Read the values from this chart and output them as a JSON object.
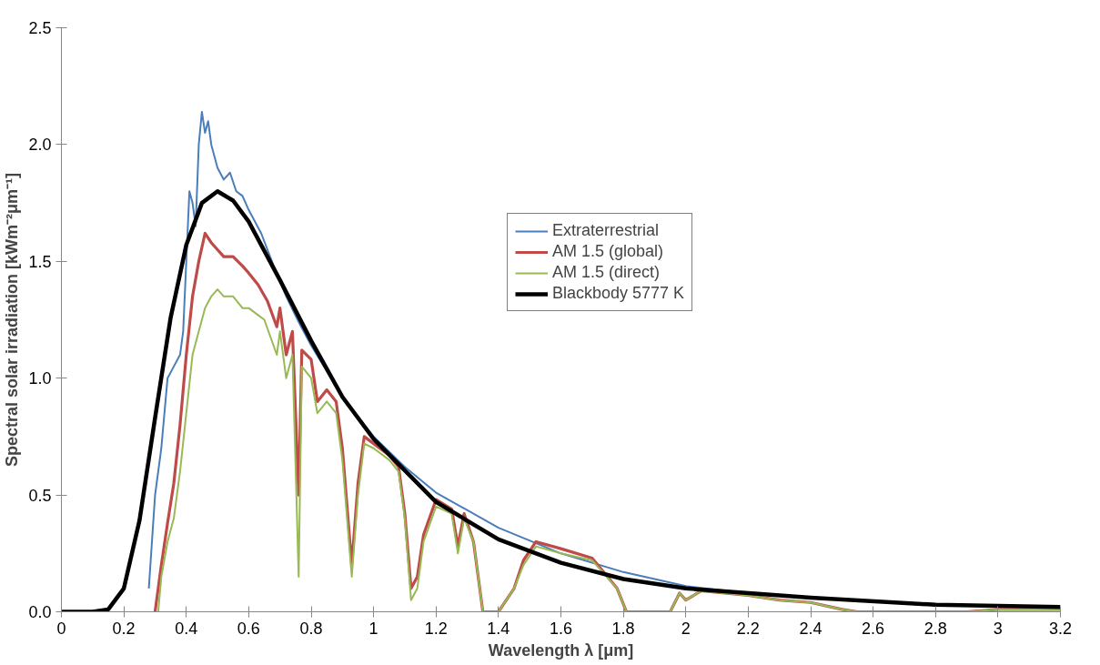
{
  "chart_data": {
    "type": "line",
    "xlabel": "Wavelength λ [μm]",
    "ylabel": "Spectral solar irradiation [kWm⁻²μm⁻¹]",
    "xlim": [
      0,
      3.2
    ],
    "ylim": [
      0,
      2.5
    ],
    "xticks": [
      0,
      0.2,
      0.4,
      0.6,
      0.8,
      1,
      1.2,
      1.4,
      1.6,
      1.8,
      2,
      2.2,
      2.4,
      2.6,
      2.8,
      3,
      3.2
    ],
    "yticks": [
      {
        "value": 0,
        "label": "0.0"
      },
      {
        "value": 0.5,
        "label": "0.5"
      },
      {
        "value": 1,
        "label": "1.0"
      },
      {
        "value": 1.5,
        "label": "1.5"
      },
      {
        "value": 2,
        "label": "2.0"
      },
      {
        "value": 2.5,
        "label": "2.5"
      }
    ],
    "grid": false,
    "legend": "top right",
    "marker": "none",
    "line_style": "solid",
    "series": [
      {
        "name": "Extraterrestrial",
        "color": "#4a7ebb",
        "x": [
          0.28,
          0.3,
          0.32,
          0.34,
          0.36,
          0.38,
          0.39,
          0.4,
          0.41,
          0.42,
          0.43,
          0.44,
          0.45,
          0.46,
          0.47,
          0.48,
          0.49,
          0.5,
          0.52,
          0.54,
          0.56,
          0.58,
          0.6,
          0.64,
          0.68,
          0.72,
          0.76,
          0.8,
          0.9,
          1.0,
          1.1,
          1.2,
          1.4,
          1.6,
          1.8,
          2.0,
          2.2
        ],
        "values": [
          0.1,
          0.5,
          0.7,
          1.0,
          1.05,
          1.1,
          1.2,
          1.5,
          1.8,
          1.75,
          1.65,
          2.0,
          2.14,
          2.05,
          2.1,
          2.0,
          1.95,
          1.9,
          1.85,
          1.88,
          1.8,
          1.78,
          1.72,
          1.62,
          1.48,
          1.35,
          1.24,
          1.14,
          0.92,
          0.75,
          0.62,
          0.51,
          0.36,
          0.25,
          0.17,
          0.11,
          0.08
        ]
      },
      {
        "name": "AM 1.5 (global)",
        "color": "#be4b48",
        "x": [
          0.3,
          0.32,
          0.34,
          0.36,
          0.38,
          0.4,
          0.42,
          0.44,
          0.46,
          0.48,
          0.5,
          0.52,
          0.55,
          0.58,
          0.6,
          0.63,
          0.66,
          0.69,
          0.7,
          0.72,
          0.74,
          0.76,
          0.77,
          0.8,
          0.82,
          0.85,
          0.88,
          0.9,
          0.93,
          0.95,
          0.97,
          1.0,
          1.05,
          1.08,
          1.1,
          1.12,
          1.14,
          1.16,
          1.2,
          1.25,
          1.27,
          1.29,
          1.32,
          1.35,
          1.4,
          1.45,
          1.48,
          1.52,
          1.6,
          1.7,
          1.78,
          1.81,
          1.95,
          1.98,
          2.0,
          2.05,
          2.2,
          2.3,
          2.4,
          2.5,
          2.55,
          2.9,
          3.0,
          3.2
        ],
        "values": [
          0,
          0.2,
          0.38,
          0.55,
          0.8,
          1.1,
          1.35,
          1.5,
          1.62,
          1.58,
          1.55,
          1.52,
          1.52,
          1.48,
          1.45,
          1.4,
          1.33,
          1.22,
          1.3,
          1.1,
          1.2,
          0.5,
          1.12,
          1.08,
          0.9,
          0.95,
          0.9,
          0.7,
          0.2,
          0.55,
          0.75,
          0.72,
          0.67,
          0.62,
          0.42,
          0.1,
          0.15,
          0.33,
          0.48,
          0.44,
          0.28,
          0.42,
          0.3,
          0,
          0,
          0.1,
          0.22,
          0.3,
          0.27,
          0.23,
          0.1,
          0,
          0,
          0.08,
          0.05,
          0.09,
          0.07,
          0.05,
          0.04,
          0.01,
          0,
          0,
          0.01,
          0.01
        ]
      },
      {
        "name": "AM 1.5 (direct)",
        "color": "#98b954",
        "x": [
          0.31,
          0.32,
          0.34,
          0.36,
          0.38,
          0.4,
          0.42,
          0.44,
          0.46,
          0.48,
          0.5,
          0.52,
          0.55,
          0.58,
          0.6,
          0.63,
          0.65,
          0.69,
          0.7,
          0.72,
          0.74,
          0.76,
          0.77,
          0.8,
          0.82,
          0.85,
          0.88,
          0.9,
          0.93,
          0.95,
          0.97,
          1.0,
          1.05,
          1.08,
          1.1,
          1.12,
          1.14,
          1.16,
          1.2,
          1.25,
          1.27,
          1.29,
          1.32,
          1.35,
          1.4,
          1.45,
          1.48,
          1.52,
          1.6,
          1.7,
          1.78,
          1.81,
          1.95,
          1.98,
          2.0,
          2.05,
          2.2,
          2.3,
          2.4,
          2.5,
          2.55,
          2.9,
          3.0,
          3.2
        ],
        "values": [
          0,
          0.15,
          0.3,
          0.4,
          0.6,
          0.85,
          1.1,
          1.2,
          1.3,
          1.35,
          1.38,
          1.35,
          1.35,
          1.3,
          1.3,
          1.27,
          1.25,
          1.1,
          1.2,
          1.0,
          1.1,
          0.15,
          1.05,
          1.0,
          0.85,
          0.9,
          0.85,
          0.65,
          0.15,
          0.5,
          0.72,
          0.7,
          0.65,
          0.6,
          0.4,
          0.05,
          0.1,
          0.3,
          0.45,
          0.42,
          0.25,
          0.4,
          0.3,
          0,
          0,
          0.1,
          0.2,
          0.28,
          0.25,
          0.22,
          0.1,
          0,
          0,
          0.08,
          0.05,
          0.09,
          0.07,
          0.05,
          0.04,
          0.01,
          0,
          0,
          0.01,
          0.01
        ]
      },
      {
        "name": "Blackbody 5777 K",
        "color": "#000000",
        "x": [
          0,
          0.1,
          0.15,
          0.2,
          0.25,
          0.3,
          0.35,
          0.4,
          0.45,
          0.5,
          0.55,
          0.6,
          0.7,
          0.8,
          0.9,
          1.0,
          1.2,
          1.4,
          1.6,
          1.8,
          2.0,
          2.4,
          2.8,
          3.2
        ],
        "values": [
          0,
          0,
          0.01,
          0.1,
          0.39,
          0.83,
          1.26,
          1.57,
          1.75,
          1.8,
          1.76,
          1.67,
          1.42,
          1.16,
          0.92,
          0.74,
          0.47,
          0.31,
          0.21,
          0.14,
          0.1,
          0.06,
          0.03,
          0.02
        ]
      }
    ]
  }
}
